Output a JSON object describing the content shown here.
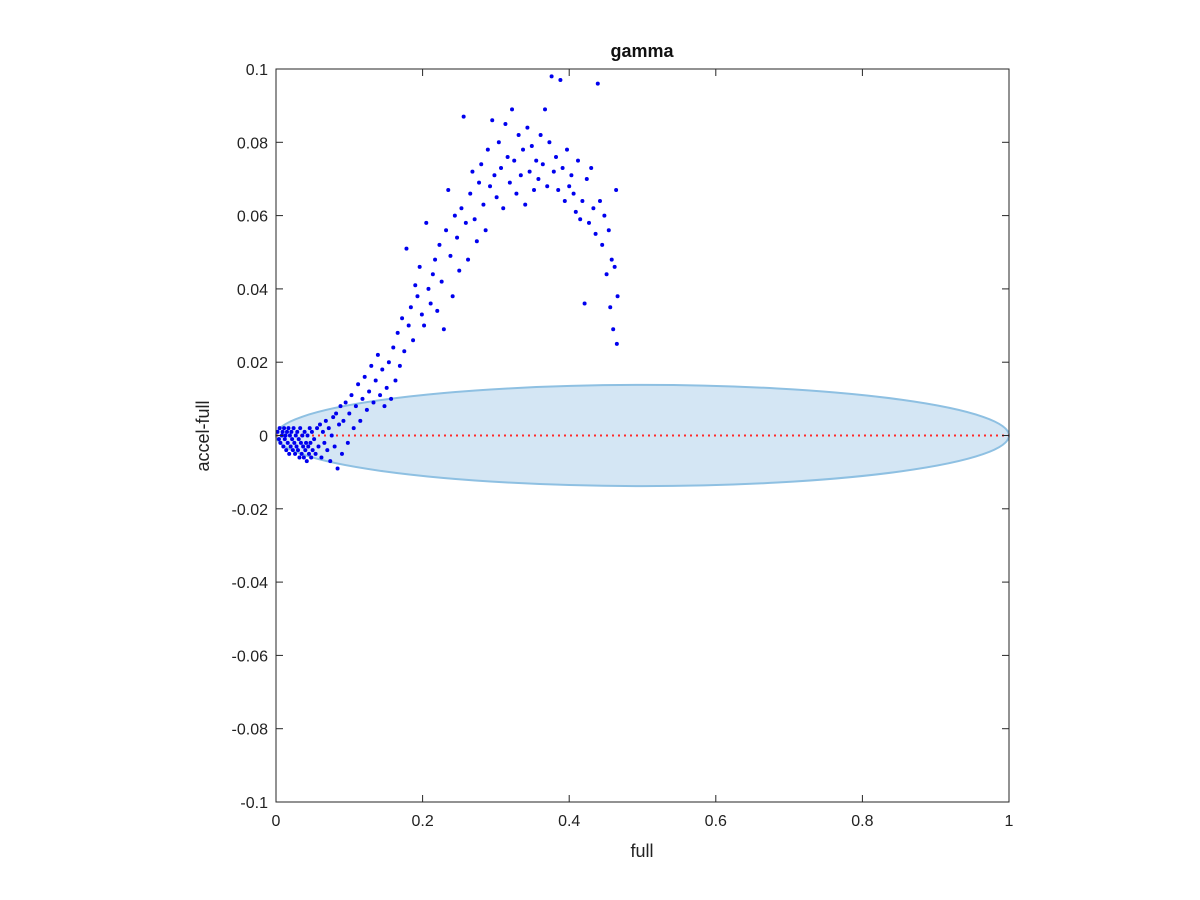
{
  "chart_data": {
    "type": "scatter",
    "title": "gamma",
    "xlabel": "full",
    "ylabel": "accel-full",
    "xlim": [
      0,
      1
    ],
    "ylim": [
      -0.1,
      0.1
    ],
    "xticks": [
      "0",
      "0.2",
      "0.4",
      "0.6",
      "0.8",
      "1"
    ],
    "yticks": [
      "-0.1",
      "-0.08",
      "-0.06",
      "-0.04",
      "-0.02",
      "0",
      "0.02",
      "0.04",
      "0.06",
      "0.08",
      "0.1"
    ],
    "grid": false,
    "point_color": "#0000ee",
    "reference_line": {
      "y": 0,
      "x_range": [
        0,
        1
      ],
      "color": "#ff2a2a",
      "style": "dotted"
    },
    "ellipse": {
      "cx": 0.5,
      "cy": 0,
      "rx": 0.5,
      "ry": 0.0138,
      "fill": "#d4e6f4",
      "stroke": "#8ec0e2"
    },
    "points": [
      [
        0.002,
        0.001
      ],
      [
        0.004,
        -0.001
      ],
      [
        0.005,
        0.002
      ],
      [
        0.006,
        -0.002
      ],
      [
        0.008,
        0.0
      ],
      [
        0.009,
        0.001
      ],
      [
        0.01,
        -0.003
      ],
      [
        0.011,
        0.002
      ],
      [
        0.012,
        -0.001
      ],
      [
        0.013,
        0.0
      ],
      [
        0.014,
        -0.004
      ],
      [
        0.015,
        0.001
      ],
      [
        0.016,
        -0.002
      ],
      [
        0.017,
        0.002
      ],
      [
        0.018,
        -0.005
      ],
      [
        0.019,
        0.0
      ],
      [
        0.02,
        -0.003
      ],
      [
        0.021,
        0.001
      ],
      [
        0.022,
        -0.001
      ],
      [
        0.023,
        -0.004
      ],
      [
        0.024,
        0.002
      ],
      [
        0.025,
        -0.002
      ],
      [
        0.026,
        -0.005
      ],
      [
        0.027,
        0.0
      ],
      [
        0.028,
        -0.003
      ],
      [
        0.029,
        0.001
      ],
      [
        0.03,
        -0.004
      ],
      [
        0.031,
        -0.001
      ],
      [
        0.032,
        -0.006
      ],
      [
        0.033,
        0.002
      ],
      [
        0.034,
        -0.002
      ],
      [
        0.035,
        -0.005
      ],
      [
        0.036,
        0.0
      ],
      [
        0.037,
        -0.003
      ],
      [
        0.038,
        -0.006
      ],
      [
        0.039,
        0.001
      ],
      [
        0.04,
        -0.004
      ],
      [
        0.041,
        -0.002
      ],
      [
        0.042,
        -0.007
      ],
      [
        0.043,
        0.0
      ],
      [
        0.044,
        -0.003
      ],
      [
        0.045,
        -0.005
      ],
      [
        0.046,
        0.002
      ],
      [
        0.047,
        -0.002
      ],
      [
        0.048,
        -0.006
      ],
      [
        0.049,
        0.001
      ],
      [
        0.05,
        -0.004
      ],
      [
        0.052,
        -0.001
      ],
      [
        0.054,
        -0.005
      ],
      [
        0.056,
        0.002
      ],
      [
        0.058,
        -0.003
      ],
      [
        0.06,
        0.003
      ],
      [
        0.062,
        -0.006
      ],
      [
        0.064,
        0.001
      ],
      [
        0.066,
        -0.002
      ],
      [
        0.068,
        0.004
      ],
      [
        0.07,
        -0.004
      ],
      [
        0.072,
        0.002
      ],
      [
        0.074,
        -0.007
      ],
      [
        0.076,
        0.0
      ],
      [
        0.078,
        0.005
      ],
      [
        0.08,
        -0.003
      ],
      [
        0.082,
        0.006
      ],
      [
        0.084,
        -0.009
      ],
      [
        0.086,
        0.003
      ],
      [
        0.088,
        0.008
      ],
      [
        0.09,
        -0.005
      ],
      [
        0.092,
        0.004
      ],
      [
        0.095,
        0.009
      ],
      [
        0.098,
        -0.002
      ],
      [
        0.1,
        0.006
      ],
      [
        0.103,
        0.011
      ],
      [
        0.106,
        0.002
      ],
      [
        0.109,
        0.008
      ],
      [
        0.112,
        0.014
      ],
      [
        0.115,
        0.004
      ],
      [
        0.118,
        0.01
      ],
      [
        0.121,
        0.016
      ],
      [
        0.124,
        0.007
      ],
      [
        0.127,
        0.012
      ],
      [
        0.13,
        0.019
      ],
      [
        0.133,
        0.009
      ],
      [
        0.136,
        0.015
      ],
      [
        0.139,
        0.022
      ],
      [
        0.142,
        0.011
      ],
      [
        0.145,
        0.018
      ],
      [
        0.148,
        0.008
      ],
      [
        0.151,
        0.013
      ],
      [
        0.154,
        0.02
      ],
      [
        0.157,
        0.01
      ],
      [
        0.16,
        0.024
      ],
      [
        0.163,
        0.015
      ],
      [
        0.166,
        0.028
      ],
      [
        0.169,
        0.019
      ],
      [
        0.172,
        0.032
      ],
      [
        0.175,
        0.023
      ],
      [
        0.178,
        0.051
      ],
      [
        0.181,
        0.03
      ],
      [
        0.184,
        0.035
      ],
      [
        0.187,
        0.026
      ],
      [
        0.19,
        0.041
      ],
      [
        0.193,
        0.038
      ],
      [
        0.196,
        0.046
      ],
      [
        0.199,
        0.033
      ],
      [
        0.202,
        0.03
      ],
      [
        0.205,
        0.058
      ],
      [
        0.208,
        0.04
      ],
      [
        0.211,
        0.036
      ],
      [
        0.214,
        0.044
      ],
      [
        0.217,
        0.048
      ],
      [
        0.22,
        0.034
      ],
      [
        0.223,
        0.052
      ],
      [
        0.226,
        0.042
      ],
      [
        0.229,
        0.029
      ],
      [
        0.232,
        0.056
      ],
      [
        0.235,
        0.067
      ],
      [
        0.238,
        0.049
      ],
      [
        0.241,
        0.038
      ],
      [
        0.244,
        0.06
      ],
      [
        0.247,
        0.054
      ],
      [
        0.25,
        0.045
      ],
      [
        0.253,
        0.062
      ],
      [
        0.256,
        0.087
      ],
      [
        0.259,
        0.058
      ],
      [
        0.262,
        0.048
      ],
      [
        0.265,
        0.066
      ],
      [
        0.268,
        0.072
      ],
      [
        0.271,
        0.059
      ],
      [
        0.274,
        0.053
      ],
      [
        0.277,
        0.069
      ],
      [
        0.28,
        0.074
      ],
      [
        0.283,
        0.063
      ],
      [
        0.286,
        0.056
      ],
      [
        0.289,
        0.078
      ],
      [
        0.292,
        0.068
      ],
      [
        0.295,
        0.086
      ],
      [
        0.298,
        0.071
      ],
      [
        0.301,
        0.065
      ],
      [
        0.304,
        0.08
      ],
      [
        0.307,
        0.073
      ],
      [
        0.31,
        0.062
      ],
      [
        0.313,
        0.085
      ],
      [
        0.316,
        0.076
      ],
      [
        0.319,
        0.069
      ],
      [
        0.322,
        0.089
      ],
      [
        0.325,
        0.075
      ],
      [
        0.328,
        0.066
      ],
      [
        0.331,
        0.082
      ],
      [
        0.334,
        0.071
      ],
      [
        0.337,
        0.078
      ],
      [
        0.34,
        0.063
      ],
      [
        0.343,
        0.084
      ],
      [
        0.346,
        0.072
      ],
      [
        0.349,
        0.079
      ],
      [
        0.352,
        0.067
      ],
      [
        0.355,
        0.075
      ],
      [
        0.358,
        0.07
      ],
      [
        0.361,
        0.082
      ],
      [
        0.364,
        0.074
      ],
      [
        0.367,
        0.089
      ],
      [
        0.37,
        0.068
      ],
      [
        0.373,
        0.08
      ],
      [
        0.376,
        0.098
      ],
      [
        0.379,
        0.072
      ],
      [
        0.382,
        0.076
      ],
      [
        0.385,
        0.067
      ],
      [
        0.388,
        0.097
      ],
      [
        0.391,
        0.073
      ],
      [
        0.394,
        0.064
      ],
      [
        0.397,
        0.078
      ],
      [
        0.4,
        0.068
      ],
      [
        0.403,
        0.071
      ],
      [
        0.406,
        0.066
      ],
      [
        0.409,
        0.061
      ],
      [
        0.412,
        0.075
      ],
      [
        0.415,
        0.059
      ],
      [
        0.418,
        0.064
      ],
      [
        0.421,
        0.036
      ],
      [
        0.424,
        0.07
      ],
      [
        0.427,
        0.058
      ],
      [
        0.43,
        0.073
      ],
      [
        0.433,
        0.062
      ],
      [
        0.436,
        0.055
      ],
      [
        0.439,
        0.096
      ],
      [
        0.442,
        0.064
      ],
      [
        0.445,
        0.052
      ],
      [
        0.448,
        0.06
      ],
      [
        0.451,
        0.044
      ],
      [
        0.454,
        0.056
      ],
      [
        0.456,
        0.035
      ],
      [
        0.458,
        0.048
      ],
      [
        0.46,
        0.029
      ],
      [
        0.462,
        0.046
      ],
      [
        0.464,
        0.067
      ],
      [
        0.465,
        0.025
      ],
      [
        0.466,
        0.038
      ]
    ]
  }
}
